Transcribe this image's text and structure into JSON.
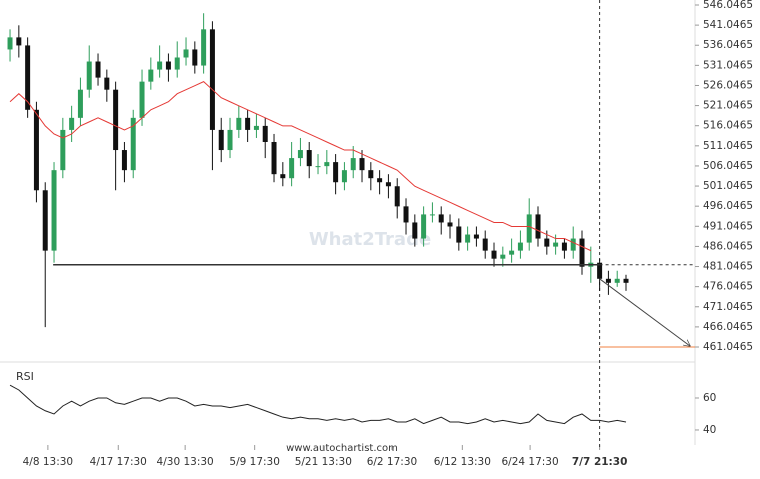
{
  "chart_data": {
    "type": "candlestick",
    "watermark": "What2Trade",
    "source": "www.autochartist.com",
    "up_color": "#2e9e5b",
    "down_color": "#111111",
    "xlim": [
      -1.14,
      77.84
    ],
    "ylim": [
      459.06,
      547.29
    ],
    "yticks": [
      546.0465,
      541.0465,
      536.0465,
      531.0465,
      526.0465,
      521.0465,
      516.0465,
      511.0465,
      506.0465,
      501.0465,
      496.0465,
      491.0465,
      486.0465,
      481.0465,
      476.0465,
      471.0465,
      466.0465,
      461.0465
    ],
    "xticks": [
      {
        "value": 4.3,
        "label": "4/8 13:30"
      },
      {
        "value": 12.3,
        "label": "4/17 17:30"
      },
      {
        "value": 19.9,
        "label": "4/30 13:30"
      },
      {
        "value": 27.8,
        "label": "5/9 17:30"
      },
      {
        "value": 35.6,
        "label": "5/21 13:30"
      },
      {
        "value": 43.4,
        "label": "6/2 17:30"
      },
      {
        "value": 51.4,
        "label": "6/12 13:30"
      },
      {
        "value": 59.1,
        "label": "6/24 17:30"
      },
      {
        "value": 67,
        "label": "7/7 21:30"
      }
    ],
    "current_x": 67,
    "support": {
      "level": 481.5,
      "from": 4.9,
      "color": "#333333"
    },
    "target": {
      "level": 461.0465,
      "color": "#f08040"
    },
    "ma": {
      "color": "#e53935",
      "values": [
        522,
        524,
        522,
        519,
        516,
        514,
        513,
        514,
        516,
        517,
        518,
        517,
        516,
        515,
        516,
        518,
        520,
        521,
        522,
        524,
        525,
        526,
        527,
        525,
        523,
        522,
        521,
        520,
        519,
        518,
        517,
        516,
        516,
        515,
        514,
        513,
        512,
        511,
        510,
        510,
        509,
        508,
        507,
        506,
        505,
        503,
        501,
        500,
        499,
        498,
        497,
        496,
        495,
        494,
        493,
        492,
        492,
        491,
        491,
        491,
        490,
        489,
        488,
        488,
        487,
        486,
        485
      ]
    },
    "candles": [
      {
        "o": 535,
        "h": 540,
        "l": 532,
        "c": 538
      },
      {
        "o": 538,
        "h": 541,
        "l": 533,
        "c": 536
      },
      {
        "o": 536,
        "h": 538,
        "l": 518,
        "c": 520
      },
      {
        "o": 520,
        "h": 522,
        "l": 497,
        "c": 500
      },
      {
        "o": 500,
        "h": 502,
        "l": 466,
        "c": 485
      },
      {
        "o": 485,
        "h": 507,
        "l": 482,
        "c": 505
      },
      {
        "o": 505,
        "h": 518,
        "l": 503,
        "c": 515
      },
      {
        "o": 515,
        "h": 521,
        "l": 512,
        "c": 518
      },
      {
        "o": 518,
        "h": 528,
        "l": 516,
        "c": 525
      },
      {
        "o": 525,
        "h": 536,
        "l": 523,
        "c": 532
      },
      {
        "o": 532,
        "h": 534,
        "l": 526,
        "c": 528
      },
      {
        "o": 528,
        "h": 530,
        "l": 522,
        "c": 525
      },
      {
        "o": 525,
        "h": 527,
        "l": 500,
        "c": 510
      },
      {
        "o": 510,
        "h": 512,
        "l": 502,
        "c": 505
      },
      {
        "o": 505,
        "h": 520,
        "l": 503,
        "c": 518
      },
      {
        "o": 518,
        "h": 530,
        "l": 516,
        "c": 527
      },
      {
        "o": 527,
        "h": 533,
        "l": 525,
        "c": 530
      },
      {
        "o": 530,
        "h": 536,
        "l": 528,
        "c": 532
      },
      {
        "o": 532,
        "h": 534,
        "l": 527,
        "c": 530
      },
      {
        "o": 530,
        "h": 537,
        "l": 528,
        "c": 533
      },
      {
        "o": 533,
        "h": 538,
        "l": 531,
        "c": 535
      },
      {
        "o": 535,
        "h": 537,
        "l": 529,
        "c": 531
      },
      {
        "o": 531,
        "h": 544,
        "l": 529,
        "c": 540
      },
      {
        "o": 540,
        "h": 542,
        "l": 505,
        "c": 515
      },
      {
        "o": 515,
        "h": 518,
        "l": 507,
        "c": 510
      },
      {
        "o": 510,
        "h": 518,
        "l": 508,
        "c": 515
      },
      {
        "o": 515,
        "h": 521,
        "l": 513,
        "c": 518
      },
      {
        "o": 518,
        "h": 520,
        "l": 512,
        "c": 515
      },
      {
        "o": 515,
        "h": 519,
        "l": 513,
        "c": 516
      },
      {
        "o": 516,
        "h": 518,
        "l": 508,
        "c": 512
      },
      {
        "o": 512,
        "h": 514,
        "l": 502,
        "c": 504
      },
      {
        "o": 504,
        "h": 507,
        "l": 501,
        "c": 503
      },
      {
        "o": 503,
        "h": 512,
        "l": 501,
        "c": 508
      },
      {
        "o": 508,
        "h": 513,
        "l": 506,
        "c": 510
      },
      {
        "o": 510,
        "h": 512,
        "l": 503,
        "c": 506
      },
      {
        "o": 506,
        "h": 509,
        "l": 504,
        "c": 506
      },
      {
        "o": 506,
        "h": 510,
        "l": 504,
        "c": 507
      },
      {
        "o": 507,
        "h": 509,
        "l": 499,
        "c": 502
      },
      {
        "o": 502,
        "h": 507,
        "l": 500,
        "c": 505
      },
      {
        "o": 505,
        "h": 511,
        "l": 503,
        "c": 508
      },
      {
        "o": 508,
        "h": 510,
        "l": 502,
        "c": 505
      },
      {
        "o": 505,
        "h": 507,
        "l": 500,
        "c": 503
      },
      {
        "o": 503,
        "h": 505,
        "l": 499,
        "c": 502
      },
      {
        "o": 502,
        "h": 504,
        "l": 498,
        "c": 501
      },
      {
        "o": 501,
        "h": 503,
        "l": 493,
        "c": 496
      },
      {
        "o": 496,
        "h": 498,
        "l": 489,
        "c": 492
      },
      {
        "o": 492,
        "h": 494,
        "l": 486,
        "c": 488
      },
      {
        "o": 488,
        "h": 496,
        "l": 486,
        "c": 494
      },
      {
        "o": 494,
        "h": 497,
        "l": 492,
        "c": 494
      },
      {
        "o": 494,
        "h": 496,
        "l": 489,
        "c": 492
      },
      {
        "o": 492,
        "h": 494,
        "l": 488,
        "c": 491
      },
      {
        "o": 491,
        "h": 493,
        "l": 485,
        "c": 487
      },
      {
        "o": 487,
        "h": 491,
        "l": 485,
        "c": 489
      },
      {
        "o": 489,
        "h": 491,
        "l": 486,
        "c": 488
      },
      {
        "o": 488,
        "h": 490,
        "l": 483,
        "c": 485
      },
      {
        "o": 485,
        "h": 487,
        "l": 481,
        "c": 483
      },
      {
        "o": 483,
        "h": 486,
        "l": 481,
        "c": 484
      },
      {
        "o": 484,
        "h": 488,
        "l": 482,
        "c": 485
      },
      {
        "o": 485,
        "h": 490,
        "l": 483,
        "c": 487
      },
      {
        "o": 487,
        "h": 498,
        "l": 485,
        "c": 494
      },
      {
        "o": 494,
        "h": 496,
        "l": 486,
        "c": 488
      },
      {
        "o": 488,
        "h": 490,
        "l": 484,
        "c": 486
      },
      {
        "o": 486,
        "h": 489,
        "l": 484,
        "c": 487
      },
      {
        "o": 487,
        "h": 488,
        "l": 483,
        "c": 485
      },
      {
        "o": 485,
        "h": 491,
        "l": 483,
        "c": 488
      },
      {
        "o": 488,
        "h": 490,
        "l": 479,
        "c": 481
      },
      {
        "o": 481,
        "h": 486,
        "l": 477,
        "c": 482
      },
      {
        "o": 482,
        "h": 483,
        "l": 475,
        "c": 478
      },
      {
        "o": 478,
        "h": 480,
        "l": 474,
        "c": 477
      },
      {
        "o": 477,
        "h": 480,
        "l": 476,
        "c": 478
      },
      {
        "o": 478,
        "h": 479,
        "l": 475,
        "c": 477
      }
    ],
    "rsi": {
      "label": "RSI",
      "ylim": [
        30.6,
        77.5
      ],
      "yticks": [
        40,
        60
      ],
      "color": "#222222",
      "values": [
        68,
        65,
        60,
        55,
        52,
        50,
        55,
        58,
        55,
        58,
        60,
        60,
        57,
        56,
        58,
        60,
        60,
        58,
        60,
        60,
        58,
        55,
        56,
        55,
        55,
        54,
        55,
        56,
        54,
        52,
        50,
        48,
        47,
        48,
        47,
        47,
        46,
        47,
        46,
        47,
        45,
        46,
        46,
        47,
        45,
        45,
        47,
        44,
        46,
        48,
        45,
        45,
        44,
        45,
        47,
        45,
        46,
        45,
        44,
        45,
        50,
        46,
        45,
        44,
        48,
        50,
        46,
        46,
        45,
        46,
        45
      ]
    }
  }
}
